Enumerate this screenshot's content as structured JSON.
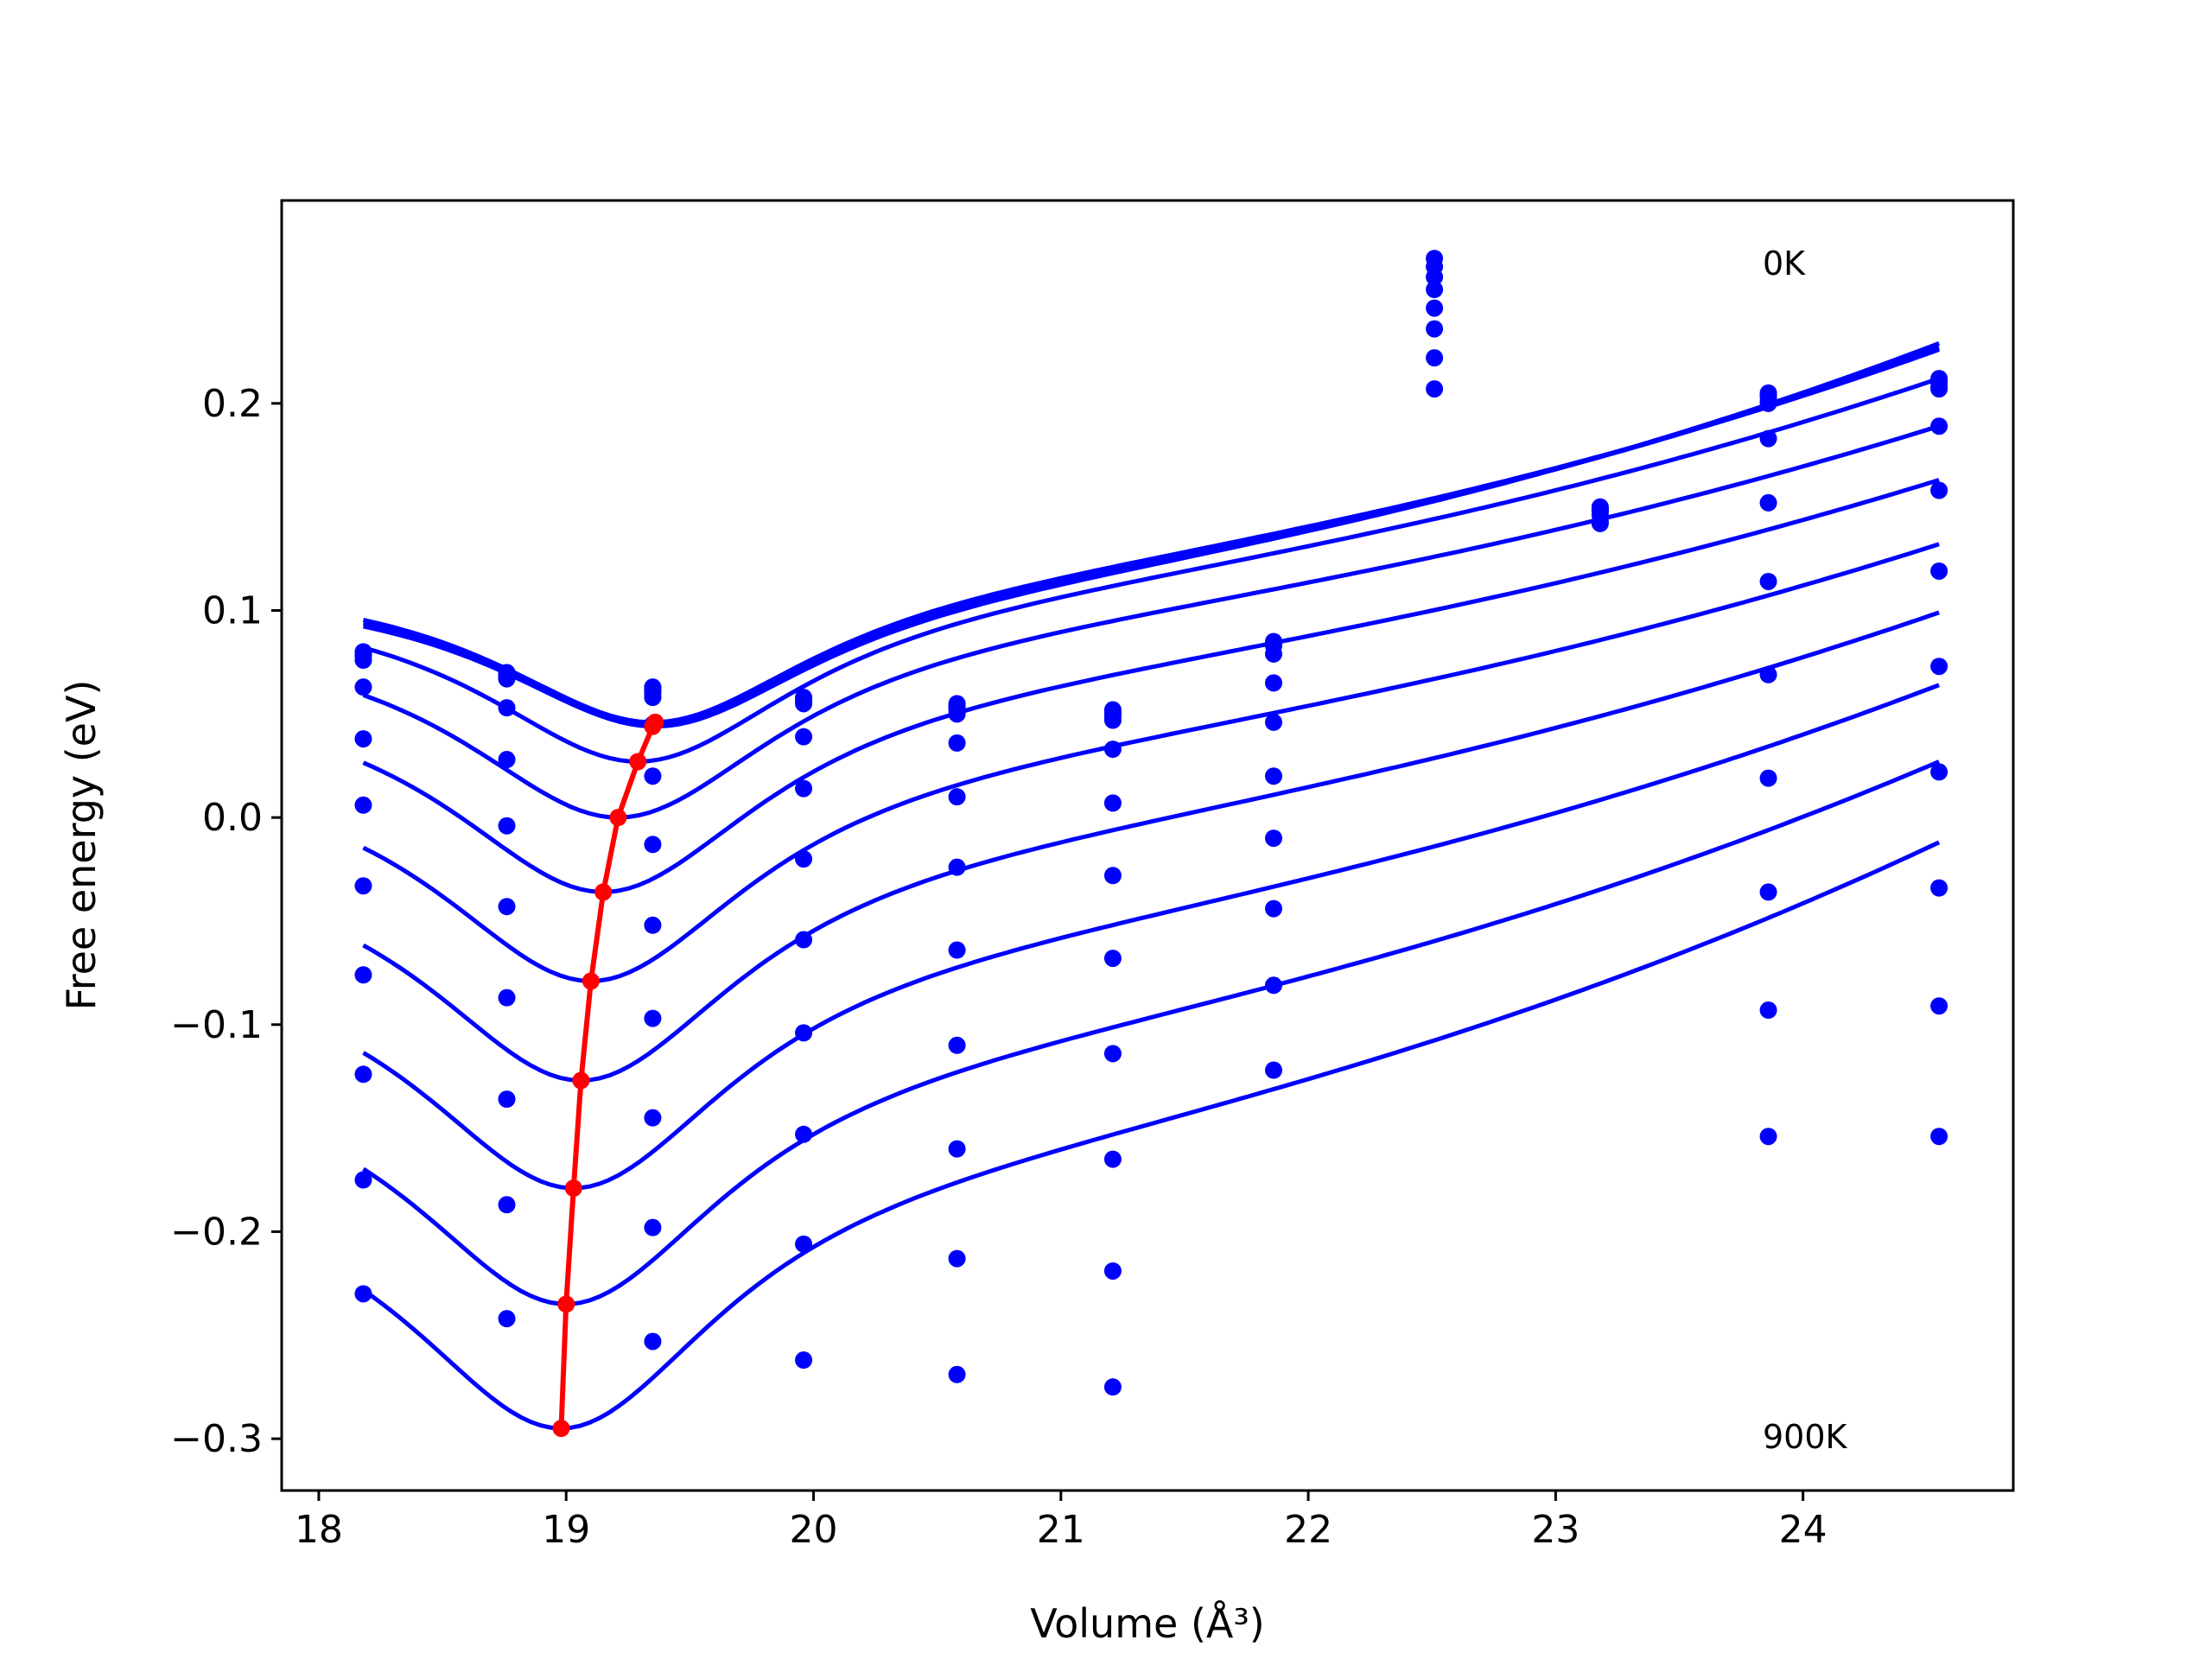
{
  "chart_data": {
    "type": "line",
    "title": "",
    "xlabel": "Volume (Å³)",
    "ylabel": "Free energy (eV)",
    "xlim": [
      17.85,
      24.85
    ],
    "ylim": [
      -0.325,
      0.298
    ],
    "xticks": [
      18,
      19,
      20,
      21,
      22,
      23,
      24
    ],
    "xtick_labels": [
      "18",
      "19",
      "20",
      "21",
      "22",
      "23",
      "24"
    ],
    "yticks": [
      0.2,
      0.1,
      0.0,
      -0.1,
      -0.2,
      -0.3
    ],
    "ytick_labels": [
      "0.2",
      "0.1",
      "0.0",
      "−0.1",
      "−0.2",
      "−0.3"
    ],
    "grid": false,
    "annotations": [
      {
        "text": "0K",
        "x": 23.85,
        "y": 0.268
      },
      {
        "text": "900K",
        "x": 23.85,
        "y": -0.297
      }
    ],
    "colors": {
      "fit_curves": "#0000ff",
      "data_points": "#0000ff",
      "minimum_path": "#ff0000"
    },
    "volumes": [
      18.18,
      18.76,
      19.35,
      19.96,
      20.58,
      21.21,
      21.86,
      22.51,
      23.18,
      23.86,
      24.55
    ],
    "series": [
      {
        "y": [
          0.08,
          0.07,
          0.063,
          0.058,
          0.055,
          0.052,
          0.085,
          0.27,
          0.15,
          0.205,
          0.212
        ]
      },
      {
        "y": [
          0.08,
          0.069,
          0.062,
          0.057,
          0.054,
          0.051,
          0.084,
          0.266,
          0.149,
          0.204,
          0.211
        ]
      },
      {
        "y": [
          0.079,
          0.068,
          0.061,
          0.056,
          0.053,
          0.05,
          0.083,
          0.261,
          0.148,
          0.203,
          0.21
        ]
      },
      {
        "y": [
          0.078,
          0.067,
          0.06,
          0.056,
          0.052,
          0.049,
          0.079,
          0.255,
          0.146,
          0.201,
          0.208
        ]
      },
      {
        "y": [
          0.076,
          0.053,
          0.058,
          0.055,
          0.05,
          0.047,
          0.065,
          0.246,
          0.142,
          0.2,
          0.207
        ]
      },
      {
        "y": [
          0.063,
          0.028,
          0.045,
          0.039,
          0.036,
          0.033,
          0.046,
          0.236,
          0.143,
          0.183,
          0.189
        ]
      },
      {
        "y": [
          0.038,
          -0.004,
          0.02,
          0.014,
          0.01,
          0.007,
          0.02,
          0.222,
          0.148,
          0.152,
          0.158
        ]
      },
      {
        "y": [
          0.006,
          -0.043,
          -0.013,
          -0.02,
          -0.024,
          -0.028,
          -0.01,
          0.207,
          0.149,
          0.114,
          0.119
        ]
      },
      {
        "y": [
          -0.033,
          -0.087,
          -0.052,
          -0.059,
          -0.064,
          -0.068,
          -0.044,
          null,
          null,
          0.069,
          0.073
        ]
      },
      {
        "y": [
          -0.076,
          -0.136,
          -0.097,
          -0.104,
          -0.11,
          -0.114,
          -0.081,
          null,
          null,
          0.019,
          0.022
        ]
      },
      {
        "y": [
          -0.124,
          -0.187,
          -0.145,
          -0.153,
          -0.16,
          -0.165,
          -0.122,
          null,
          null,
          -0.036,
          -0.034
        ]
      },
      {
        "y": [
          -0.175,
          -0.242,
          -0.198,
          -0.206,
          -0.213,
          -0.219,
          null,
          null,
          null,
          -0.093,
          -0.091
        ]
      },
      {
        "y": [
          -0.23,
          null,
          -0.253,
          -0.262,
          -0.269,
          -0.275,
          null,
          null,
          null,
          -0.154,
          -0.154
        ]
      }
    ],
    "fit_curves": [
      {
        "v0": 19.36,
        "e0": 0.044,
        "k": 0.07,
        "end_y": 0.229
      },
      {
        "v0": 19.36,
        "e0": 0.045,
        "k": 0.071,
        "end_y": 0.227
      },
      {
        "v0": 19.35,
        "e0": 0.046,
        "k": 0.072,
        "end_y": 0.226
      },
      {
        "v0": 19.29,
        "e0": 0.027,
        "k": 0.083,
        "end_y": 0.212
      },
      {
        "v0": 19.21,
        "e0": 0.0,
        "k": 0.094,
        "end_y": 0.189
      },
      {
        "v0": 19.15,
        "e0": -0.036,
        "k": 0.104,
        "end_y": 0.163
      },
      {
        "v0": 19.1,
        "e0": -0.079,
        "k": 0.112,
        "end_y": 0.132
      },
      {
        "v0": 19.06,
        "e0": -0.127,
        "k": 0.118,
        "end_y": 0.099
      },
      {
        "v0": 19.03,
        "e0": -0.179,
        "k": 0.122,
        "end_y": 0.064
      },
      {
        "v0": 19.0,
        "e0": -0.235,
        "k": 0.126,
        "end_y": 0.027
      },
      {
        "v0": 18.98,
        "e0": -0.295,
        "k": 0.132,
        "end_y": -0.012
      }
    ],
    "fit_volume_range": [
      18.18,
      24.55
    ],
    "minimum_path": {
      "x": [
        19.36,
        19.35,
        19.29,
        19.21,
        19.15,
        19.1,
        19.06,
        19.03,
        19.0,
        18.98
      ],
      "y": [
        0.046,
        0.044,
        0.027,
        0.0,
        -0.036,
        -0.079,
        -0.127,
        -0.179,
        -0.235,
        -0.295
      ]
    }
  }
}
